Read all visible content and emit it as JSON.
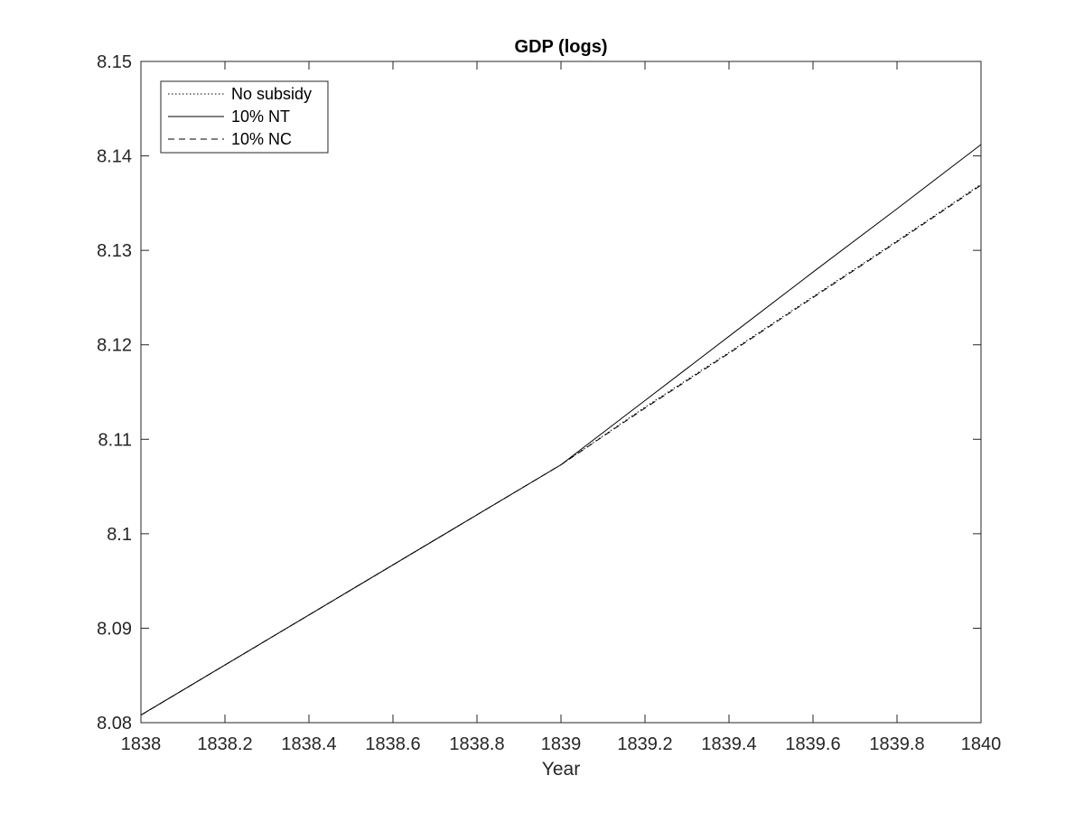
{
  "chart_data": {
    "type": "line",
    "title": "GDP (logs)",
    "xlabel": "Year",
    "ylabel": "",
    "xlim": [
      1838,
      1840
    ],
    "ylim": [
      8.08,
      8.15
    ],
    "xticks": [
      1838,
      1838.2,
      1838.4,
      1838.6,
      1838.8,
      1839,
      1839.2,
      1839.4,
      1839.6,
      1839.8,
      1840
    ],
    "xtick_labels": [
      "1838",
      "1838.2",
      "1838.4",
      "1838.6",
      "1838.8",
      "1839",
      "1839.2",
      "1839.4",
      "1839.6",
      "1839.8",
      "1840"
    ],
    "yticks": [
      8.08,
      8.09,
      8.1,
      8.11,
      8.12,
      8.13,
      8.14,
      8.15
    ],
    "ytick_labels": [
      "8.08",
      "8.09",
      "8.1",
      "8.11",
      "8.12",
      "8.13",
      "8.14",
      "8.15"
    ],
    "grid": false,
    "legend_position": "top-left",
    "series": [
      {
        "name": "No subsidy",
        "style": "dotted",
        "color": "#000000",
        "x": [
          1838,
          1839,
          1839.2,
          1839.4,
          1839.6,
          1839.8,
          1840
        ],
        "y": [
          8.0808,
          8.1073,
          8.1134,
          8.1192,
          8.1251,
          8.131,
          8.137
        ]
      },
      {
        "name": "10% NT",
        "style": "solid",
        "color": "#000000",
        "x": [
          1838,
          1839,
          1839.2,
          1839.4,
          1839.6,
          1839.8,
          1840
        ],
        "y": [
          8.0808,
          8.1073,
          8.1141,
          8.1209,
          8.1277,
          8.1344,
          8.1412
        ]
      },
      {
        "name": "10% NC",
        "style": "dashed",
        "color": "#000000",
        "x": [
          1838,
          1839,
          1839.2,
          1839.4,
          1839.6,
          1839.8,
          1840
        ],
        "y": [
          8.0808,
          8.1073,
          8.1133,
          8.1191,
          8.125,
          8.1309,
          8.1369
        ]
      }
    ]
  }
}
